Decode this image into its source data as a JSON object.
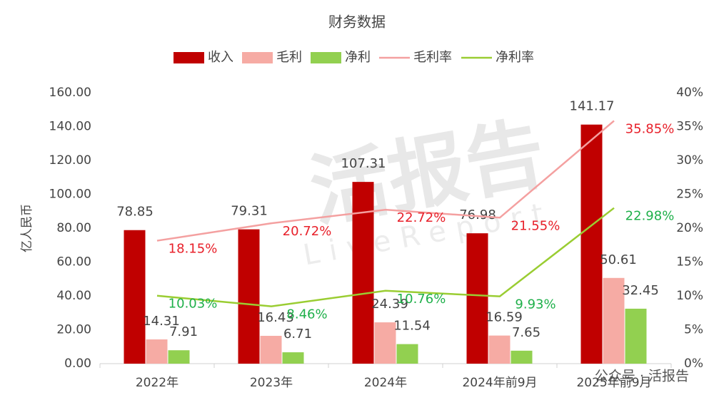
{
  "chart_data": {
    "type": "combo",
    "title": "财务数据",
    "y_label": "亿人民币",
    "categories": [
      "2022年",
      "2023年",
      "2024年",
      "2024年前9月",
      "2025年前9月"
    ],
    "series": [
      {
        "name": "收入",
        "type": "bar",
        "color": "#c00000",
        "values": [
          78.85,
          79.31,
          107.31,
          76.98,
          141.17
        ]
      },
      {
        "name": "毛利",
        "type": "bar",
        "color": "#f6aba4",
        "values": [
          14.31,
          16.43,
          24.39,
          16.59,
          50.61
        ]
      },
      {
        "name": "净利",
        "type": "bar",
        "color": "#92d050",
        "values": [
          7.91,
          6.71,
          11.54,
          7.65,
          32.45
        ]
      },
      {
        "name": "毛利率",
        "type": "line",
        "axis": "y2",
        "color": "#f4a0a0",
        "label_color": "#e8202a",
        "values": [
          18.15,
          20.72,
          22.72,
          21.55,
          35.85
        ],
        "value_labels": [
          "18.15%",
          "20.72%",
          "22.72%",
          "21.55%",
          "35.85%"
        ]
      },
      {
        "name": "净利率",
        "type": "line",
        "axis": "y2",
        "color": "#9acd32",
        "label_color": "#1fb04a",
        "values": [
          10.03,
          8.46,
          10.76,
          9.93,
          22.98
        ],
        "value_labels": [
          "10.03%",
          "8.46%",
          "10.76%",
          "9.93%",
          "22.98%"
        ]
      }
    ],
    "ylim": [
      0,
      160
    ],
    "yticks": [
      {
        "value": 0,
        "label": "0.00"
      },
      {
        "value": 20,
        "label": "20.00"
      },
      {
        "value": 40,
        "label": "40.00"
      },
      {
        "value": 60,
        "label": "60.00"
      },
      {
        "value": 80,
        "label": "80.00"
      },
      {
        "value": 100,
        "label": "100.00"
      },
      {
        "value": 120,
        "label": "120.00"
      },
      {
        "value": 140,
        "label": "140.00"
      },
      {
        "value": 160,
        "label": "160.00"
      }
    ],
    "y2lim": [
      0,
      40
    ],
    "y2ticks": [
      {
        "value": 0,
        "label": "0%"
      },
      {
        "value": 5,
        "label": "5%"
      },
      {
        "value": 10,
        "label": "10%"
      },
      {
        "value": 15,
        "label": "15%"
      },
      {
        "value": 20,
        "label": "20%"
      },
      {
        "value": 25,
        "label": "25%"
      },
      {
        "value": 30,
        "label": "30%"
      },
      {
        "value": 35,
        "label": "35%"
      },
      {
        "value": 40,
        "label": "40%"
      }
    ],
    "legend": "top",
    "grid": false,
    "watermark": "活报告",
    "watermark_sub": "LiveReport",
    "source": "公众号 · 活报告"
  }
}
